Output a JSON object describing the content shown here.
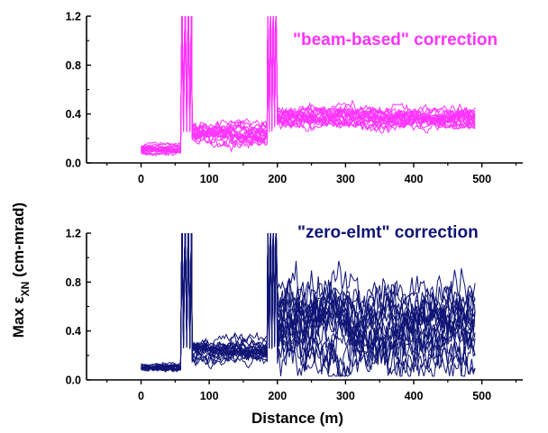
{
  "figure": {
    "ylabel_prefix": "Max ε",
    "ylabel_subscript": "XN",
    "ylabel_suffix": " (cm-mrad)",
    "xlabel": "Distance (m)"
  },
  "chart_data": [
    {
      "type": "line",
      "annotation": "\"beam-based\" correction",
      "color": "#ff33ff",
      "xlim": [
        -80,
        560
      ],
      "ylim": [
        0.0,
        1.2
      ],
      "xticks": [
        0,
        100,
        200,
        300,
        400,
        500
      ],
      "yticks": [
        0.0,
        0.4,
        0.8,
        1.2
      ],
      "ytick_labels": [
        "0.0",
        "0.4",
        "0.8",
        "1.2"
      ],
      "grid": false,
      "segments": [
        {
          "x_range": [
            0,
            58
          ],
          "base": 0.11,
          "spread": 0.06
        },
        {
          "x_range": [
            60,
            74
          ],
          "base": 1.2,
          "spread": 0.0,
          "note": "spikes above axis"
        },
        {
          "x_range": [
            75,
            185
          ],
          "base": 0.24,
          "spread": 0.14
        },
        {
          "x_range": [
            186,
            198
          ],
          "base": 1.2,
          "spread": 0.0,
          "note": "spikes above axis"
        },
        {
          "x_range": [
            200,
            490
          ],
          "base": 0.38,
          "spread": 0.14
        }
      ],
      "series_count": 20
    },
    {
      "type": "line",
      "annotation": "\"zero-elmt\" correction",
      "color": "#101575",
      "xlim": [
        -80,
        560
      ],
      "ylim": [
        0.0,
        1.2
      ],
      "xticks": [
        0,
        100,
        200,
        300,
        400,
        500
      ],
      "yticks": [
        0.0,
        0.4,
        0.8,
        1.2
      ],
      "ytick_labels": [
        "0.0",
        "0.4",
        "0.8",
        "1.2"
      ],
      "grid": false,
      "segments": [
        {
          "x_range": [
            0,
            58
          ],
          "base": 0.1,
          "spread": 0.05
        },
        {
          "x_range": [
            60,
            74
          ],
          "base": 1.2,
          "spread": 0.0,
          "note": "spikes above axis"
        },
        {
          "x_range": [
            75,
            185
          ],
          "base": 0.22,
          "spread": 0.16
        },
        {
          "x_range": [
            186,
            198
          ],
          "base": 1.2,
          "spread": 0.0,
          "note": "spikes above axis"
        },
        {
          "x_range": [
            200,
            490
          ],
          "base": 0.42,
          "spread": 0.55
        }
      ],
      "series_count": 20
    }
  ]
}
